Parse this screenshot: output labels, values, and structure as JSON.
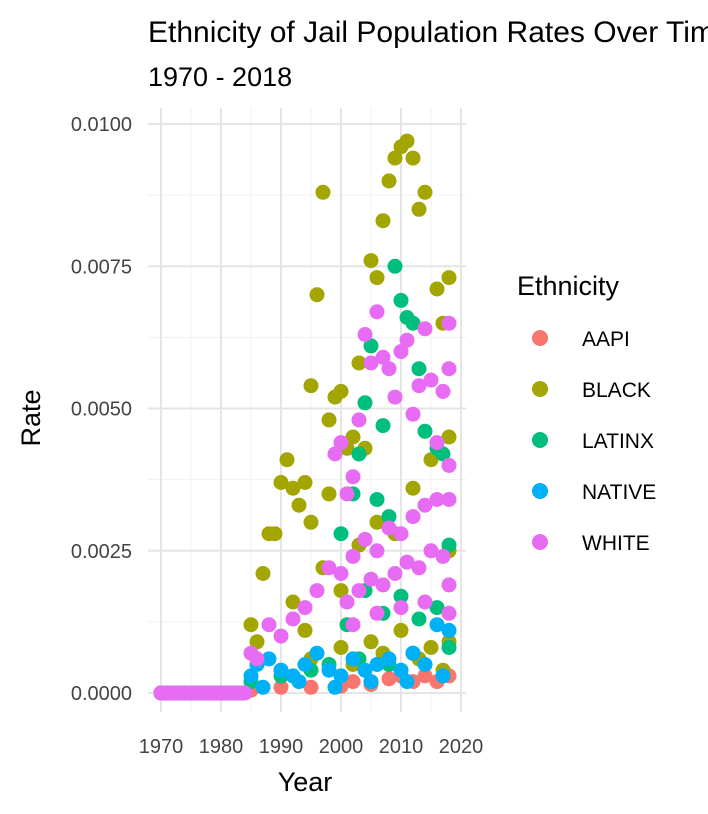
{
  "chart_data": {
    "type": "scatter",
    "title": "Ethnicity of Jail Population Rates Over Time",
    "subtitle": "1970 - 2018",
    "xlabel": "Year",
    "ylabel": "Rate",
    "xlim": [
      1968,
      2019
    ],
    "ylim": [
      0,
      0.01
    ],
    "x_ticks": [
      1970,
      1980,
      1990,
      2000,
      2010,
      2020
    ],
    "x_tick_labels": [
      "1970",
      "1980",
      "1990",
      "2000",
      "2010",
      "2020"
    ],
    "y_ticks": [
      0,
      0.0025,
      0.005,
      0.0075,
      0.01
    ],
    "y_tick_labels": [
      "0.0000",
      "0.0025",
      "0.0050",
      "0.0075",
      "0.0100"
    ],
    "grid": true,
    "legend": {
      "title": "Ethnicity",
      "position": "right"
    },
    "series": [
      {
        "name": "AAPI",
        "color": "#F8766D",
        "points": [
          [
            1970,
            0
          ],
          [
            1975,
            0
          ],
          [
            1980,
            0
          ],
          [
            1985,
            5e-05
          ],
          [
            1990,
            0.0001
          ],
          [
            1995,
            0.0001
          ],
          [
            2000,
            0.00012
          ],
          [
            2002,
            0.0002
          ],
          [
            2005,
            0.00015
          ],
          [
            2008,
            0.00025
          ],
          [
            2010,
            0.0003
          ],
          [
            2012,
            0.0002
          ],
          [
            2014,
            0.0003
          ],
          [
            2016,
            0.0002
          ],
          [
            2018,
            0.0003
          ]
        ]
      },
      {
        "name": "BLACK",
        "color": "#A3A500",
        "points": [
          [
            1970,
            0
          ],
          [
            1975,
            0
          ],
          [
            1980,
            0
          ],
          [
            1985,
            0.0012
          ],
          [
            1986,
            0.0009
          ],
          [
            1987,
            0.0021
          ],
          [
            1988,
            0.0028
          ],
          [
            1989,
            0.0028
          ],
          [
            1990,
            0.0037
          ],
          [
            1991,
            0.0041
          ],
          [
            1992,
            0.0036
          ],
          [
            1993,
            0.0033
          ],
          [
            1994,
            0.0037
          ],
          [
            1995,
            0.0054
          ],
          [
            1995,
            0.003
          ],
          [
            1996,
            0.007
          ],
          [
            1997,
            0.0088
          ],
          [
            1998,
            0.0048
          ],
          [
            1998,
            0.0035
          ],
          [
            1999,
            0.0052
          ],
          [
            2000,
            0.0053
          ],
          [
            2001,
            0.0043
          ],
          [
            2002,
            0.0045
          ],
          [
            2003,
            0.0058
          ],
          [
            2004,
            0.0043
          ],
          [
            2005,
            0.0076
          ],
          [
            2006,
            0.0073
          ],
          [
            2007,
            0.0083
          ],
          [
            2008,
            0.009
          ],
          [
            2009,
            0.0094
          ],
          [
            2010,
            0.0096
          ],
          [
            2011,
            0.0097
          ],
          [
            2012,
            0.0094
          ],
          [
            2013,
            0.0085
          ],
          [
            2014,
            0.0088
          ],
          [
            2016,
            0.0071
          ],
          [
            2017,
            0.0065
          ],
          [
            2018,
            0.0073
          ],
          [
            2018,
            0.0045
          ],
          [
            1992,
            0.0016
          ],
          [
            1994,
            0.0011
          ],
          [
            1997,
            0.0022
          ],
          [
            2000,
            0.0018
          ],
          [
            2003,
            0.0026
          ],
          [
            2006,
            0.003
          ],
          [
            2009,
            0.0028
          ],
          [
            2012,
            0.0036
          ],
          [
            2015,
            0.0041
          ],
          [
            2018,
            0.0025
          ],
          [
            1990,
            0.0004
          ],
          [
            1995,
            0.0006
          ],
          [
            2000,
            0.0008
          ],
          [
            2005,
            0.0009
          ],
          [
            2010,
            0.0011
          ],
          [
            2015,
            0.0008
          ],
          [
            2018,
            0.0009
          ],
          [
            2002,
            0.0005
          ],
          [
            2007,
            0.0007
          ],
          [
            2013,
            0.0006
          ],
          [
            2017,
            0.0004
          ]
        ]
      },
      {
        "name": "LATINX",
        "color": "#00BF7D",
        "points": [
          [
            1970,
            0
          ],
          [
            1975,
            0
          ],
          [
            1980,
            0
          ],
          [
            1985,
            0.0002
          ],
          [
            1990,
            0.0003
          ],
          [
            1995,
            0.0004
          ],
          [
            1998,
            0.0005
          ],
          [
            2000,
            0.0028
          ],
          [
            2002,
            0.0035
          ],
          [
            2003,
            0.0042
          ],
          [
            2004,
            0.0051
          ],
          [
            2005,
            0.0061
          ],
          [
            2006,
            0.0034
          ],
          [
            2007,
            0.0047
          ],
          [
            2008,
            0.0031
          ],
          [
            2009,
            0.0075
          ],
          [
            2010,
            0.0069
          ],
          [
            2011,
            0.0066
          ],
          [
            2012,
            0.0065
          ],
          [
            2013,
            0.0057
          ],
          [
            2014,
            0.0046
          ],
          [
            2016,
            0.0043
          ],
          [
            2017,
            0.0042
          ],
          [
            2018,
            0.0026
          ],
          [
            2001,
            0.0012
          ],
          [
            2004,
            0.0018
          ],
          [
            2007,
            0.0014
          ],
          [
            2010,
            0.0017
          ],
          [
            2013,
            0.0013
          ],
          [
            2016,
            0.0015
          ],
          [
            2018,
            0.0008
          ],
          [
            2003,
            0.0006
          ],
          [
            2008,
            0.0005
          ],
          [
            2012,
            0.0007
          ]
        ]
      },
      {
        "name": "NATIVE",
        "color": "#00B0F6",
        "points": [
          [
            1970,
            0
          ],
          [
            1975,
            0
          ],
          [
            1980,
            0
          ],
          [
            1985,
            0.0003
          ],
          [
            1986,
            0.0005
          ],
          [
            1988,
            0.0006
          ],
          [
            1990,
            0.0004
          ],
          [
            1992,
            0.0003
          ],
          [
            1994,
            0.0005
          ],
          [
            1996,
            0.0007
          ],
          [
            1998,
            0.0004
          ],
          [
            2000,
            0.0003
          ],
          [
            2002,
            0.0006
          ],
          [
            2004,
            0.0004
          ],
          [
            2006,
            0.0005
          ],
          [
            2008,
            0.0006
          ],
          [
            2010,
            0.0004
          ],
          [
            2012,
            0.0007
          ],
          [
            2014,
            0.0005
          ],
          [
            2016,
            0.0012
          ],
          [
            2018,
            0.0011
          ],
          [
            1987,
            0.0001
          ],
          [
            1993,
            0.0002
          ],
          [
            1999,
            0.0001
          ],
          [
            2005,
            0.0002
          ],
          [
            2011,
            0.0002
          ],
          [
            2017,
            0.0003
          ]
        ]
      },
      {
        "name": "WHITE",
        "color": "#E76BF3",
        "points": [
          [
            1970,
            0
          ],
          [
            1972,
            0
          ],
          [
            1974,
            0
          ],
          [
            1976,
            0
          ],
          [
            1978,
            0
          ],
          [
            1980,
            0
          ],
          [
            1982,
            0
          ],
          [
            1984,
            0
          ],
          [
            1985,
            0.0007
          ],
          [
            1986,
            0.0006
          ],
          [
            1988,
            0.0012
          ],
          [
            1990,
            0.001
          ],
          [
            1992,
            0.0013
          ],
          [
            1994,
            0.0015
          ],
          [
            1996,
            0.0018
          ],
          [
            1998,
            0.0022
          ],
          [
            1999,
            0.0042
          ],
          [
            2000,
            0.0044
          ],
          [
            2001,
            0.0035
          ],
          [
            2002,
            0.0038
          ],
          [
            2003,
            0.0048
          ],
          [
            2004,
            0.0063
          ],
          [
            2005,
            0.0058
          ],
          [
            2006,
            0.0067
          ],
          [
            2007,
            0.0059
          ],
          [
            2008,
            0.0057
          ],
          [
            2009,
            0.0052
          ],
          [
            2010,
            0.006
          ],
          [
            2011,
            0.0062
          ],
          [
            2012,
            0.0049
          ],
          [
            2013,
            0.0054
          ],
          [
            2014,
            0.0064
          ],
          [
            2015,
            0.0055
          ],
          [
            2016,
            0.0044
          ],
          [
            2017,
            0.0053
          ],
          [
            2018,
            0.0065
          ],
          [
            2018,
            0.0057
          ],
          [
            2018,
            0.004
          ],
          [
            2000,
            0.0021
          ],
          [
            2002,
            0.0024
          ],
          [
            2004,
            0.0027
          ],
          [
            2006,
            0.0025
          ],
          [
            2008,
            0.0029
          ],
          [
            2010,
            0.0028
          ],
          [
            2012,
            0.0031
          ],
          [
            2014,
            0.0033
          ],
          [
            2016,
            0.0034
          ],
          [
            2018,
            0.0034
          ],
          [
            2001,
            0.0016
          ],
          [
            2003,
            0.0018
          ],
          [
            2005,
            0.002
          ],
          [
            2007,
            0.0019
          ],
          [
            2009,
            0.0021
          ],
          [
            2011,
            0.0023
          ],
          [
            2013,
            0.0022
          ],
          [
            2015,
            0.0025
          ],
          [
            2017,
            0.0024
          ],
          [
            2018,
            0.0019
          ],
          [
            2002,
            0.0012
          ],
          [
            2006,
            0.0014
          ],
          [
            2010,
            0.0015
          ],
          [
            2014,
            0.0016
          ],
          [
            2018,
            0.0014
          ]
        ]
      }
    ]
  }
}
